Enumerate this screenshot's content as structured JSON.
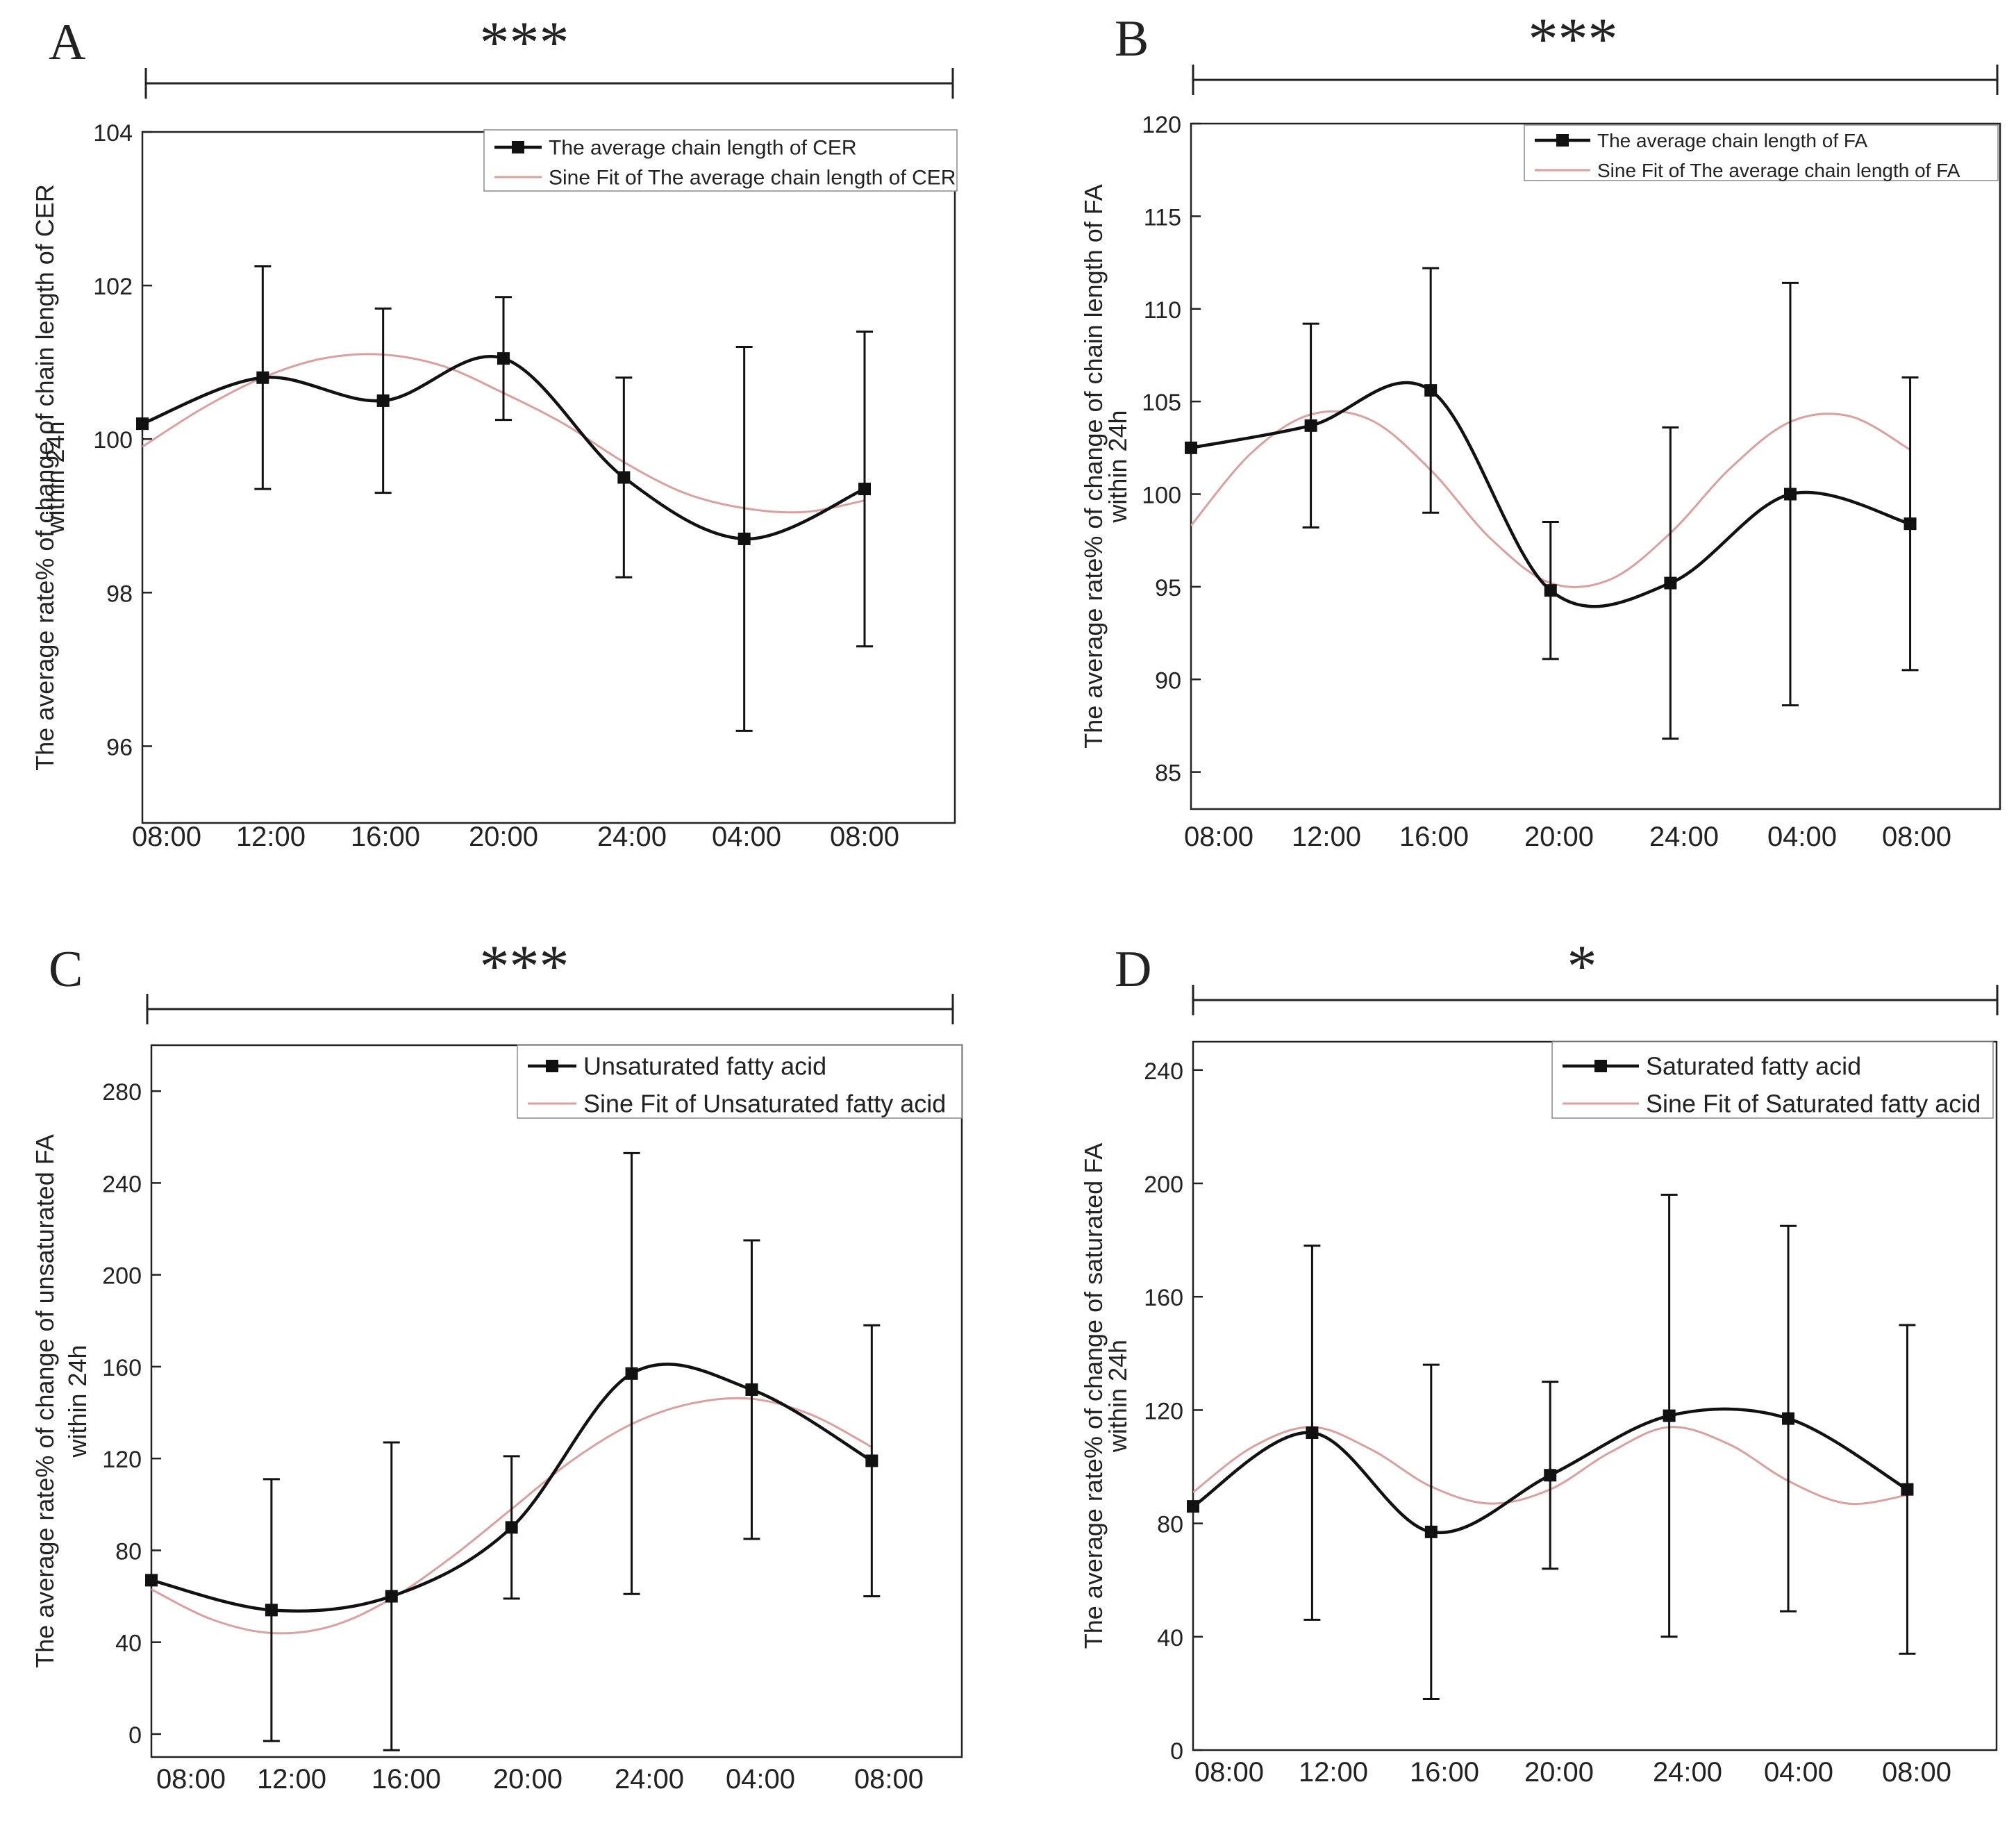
{
  "figure": {
    "panels": [
      {
        "letter": "A",
        "significance": "***",
        "ylabel_line1": "The average rate% of change of chain length of CER",
        "ylabel_line2": "within 24h",
        "legend_data": "The average chain length of CER",
        "legend_fit": "Sine Fit of The average chain length of CER",
        "xticks": [
          "08:00",
          "12:00",
          "16:00",
          "20:00",
          "24:00",
          "04:00",
          "08:00"
        ],
        "yticks": [
          96,
          98,
          100,
          102,
          104
        ]
      },
      {
        "letter": "B",
        "significance": "***",
        "ylabel_line1": "The average rate% of change of chain length of FA",
        "ylabel_line2": "within 24h",
        "legend_data": "The average chain length of FA",
        "legend_fit": "Sine Fit of The average chain length of FA",
        "xticks": [
          "08:00",
          "12:00",
          "16:00",
          "20:00",
          "24:00",
          "04:00",
          "08:00"
        ],
        "yticks": [
          85,
          90,
          95,
          100,
          105,
          110,
          115,
          120
        ]
      },
      {
        "letter": "C",
        "significance": "***",
        "ylabel_line1": "The average rate% of change of unsaturated FA",
        "ylabel_line2": "within 24h",
        "legend_data": "Unsaturated fatty acid",
        "legend_fit": "Sine Fit of Unsaturated fatty acid",
        "xticks": [
          "08:00",
          "12:00",
          "16:00",
          "20:00",
          "24:00",
          "04:00",
          "08:00"
        ],
        "yticks": [
          0,
          40,
          80,
          120,
          160,
          200,
          240,
          280
        ]
      },
      {
        "letter": "D",
        "significance": "*",
        "ylabel_line1": "The average rate% of change of saturated FA",
        "ylabel_line2": "within 24h",
        "legend_data": "Saturated fatty acid",
        "legend_fit": "Sine Fit of Saturated fatty acid",
        "xticks": [
          "08:00",
          "12:00",
          "16:00",
          "20:00",
          "24:00",
          "04:00",
          "08:00"
        ],
        "yticks": [
          0,
          40,
          80,
          120,
          160,
          200,
          240
        ]
      }
    ]
  },
  "colors": {
    "data": "#111111",
    "fit": "#d9a0a0",
    "axis": "#222222"
  },
  "chart_data": [
    {
      "type": "line",
      "panel": "A",
      "categories": [
        "08:00",
        "12:00",
        "16:00",
        "20:00",
        "24:00",
        "04:00",
        "08:00"
      ],
      "x": [
        0,
        4,
        8,
        12,
        16,
        20,
        24
      ],
      "series": [
        {
          "name": "The average chain length of CER",
          "x": [
            0,
            4,
            8,
            12,
            16,
            20,
            24
          ],
          "values": [
            100.2,
            100.8,
            100.5,
            101.05,
            99.5,
            98.7,
            99.35
          ],
          "error": [
            null,
            1.45,
            1.2,
            0.8,
            1.3,
            2.5,
            2.05
          ]
        },
        {
          "name": "Sine Fit of The average chain length of CER",
          "x": [
            0,
            2,
            4,
            6,
            8,
            10,
            12,
            14,
            16,
            18,
            20,
            22,
            24
          ],
          "values": [
            99.9,
            100.4,
            100.8,
            101.05,
            101.1,
            100.95,
            100.6,
            100.2,
            99.7,
            99.3,
            99.1,
            99.05,
            99.2
          ]
        }
      ],
      "xlim": [
        0,
        27
      ],
      "ylim": [
        95,
        104
      ],
      "legend": "top-right"
    },
    {
      "type": "line",
      "panel": "B",
      "categories": [
        "08:00",
        "12:00",
        "16:00",
        "20:00",
        "24:00",
        "04:00",
        "08:00"
      ],
      "x": [
        0,
        4,
        8,
        12,
        16,
        20,
        24
      ],
      "series": [
        {
          "name": "The average chain length of FA",
          "x": [
            0,
            4,
            8,
            12,
            16,
            20,
            24
          ],
          "values": [
            102.5,
            103.7,
            105.6,
            94.8,
            95.2,
            100.0,
            98.4
          ],
          "error": [
            null,
            5.5,
            6.6,
            3.7,
            8.4,
            11.4,
            7.9
          ]
        },
        {
          "name": "Sine Fit of The average chain length of FA",
          "x": [
            0,
            2,
            4,
            6,
            8,
            10,
            12,
            14,
            16,
            18,
            20,
            22,
            24
          ],
          "values": [
            98.3,
            102.2,
            104.3,
            104.0,
            101.3,
            97.6,
            95.2,
            95.4,
            97.9,
            101.4,
            103.9,
            104.2,
            102.4
          ]
        }
      ],
      "xlim": [
        0,
        27
      ],
      "ylim": [
        83,
        120
      ],
      "legend": "top-right"
    },
    {
      "type": "line",
      "panel": "C",
      "categories": [
        "08:00",
        "12:00",
        "16:00",
        "20:00",
        "24:00",
        "04:00",
        "08:00"
      ],
      "x": [
        0,
        4,
        8,
        12,
        16,
        20,
        24
      ],
      "series": [
        {
          "name": "Unsaturated fatty acid",
          "x": [
            0,
            4,
            8,
            12,
            16,
            20,
            24
          ],
          "values": [
            67,
            54,
            60,
            90,
            157,
            150,
            119
          ],
          "error": [
            null,
            57,
            67,
            31,
            96,
            65,
            59
          ]
        },
        {
          "name": "Sine Fit of Unsaturated fatty acid",
          "x": [
            0,
            2,
            4,
            6,
            8,
            10,
            12,
            14,
            16,
            18,
            20,
            22,
            24
          ],
          "values": [
            63,
            50,
            44,
            47,
            59,
            77,
            98,
            119,
            135,
            144,
            146,
            139,
            125
          ]
        }
      ],
      "xlim": [
        0,
        27
      ],
      "ylim": [
        -10,
        300
      ],
      "legend": "top-right"
    },
    {
      "type": "line",
      "panel": "D",
      "categories": [
        "08:00",
        "12:00",
        "16:00",
        "20:00",
        "24:00",
        "04:00",
        "08:00"
      ],
      "x": [
        0,
        4,
        8,
        12,
        16,
        20,
        24
      ],
      "series": [
        {
          "name": "Saturated fatty acid",
          "x": [
            0,
            4,
            8,
            12,
            16,
            20,
            24
          ],
          "values": [
            86,
            112,
            77,
            97,
            118,
            117,
            92
          ],
          "error": [
            null,
            66,
            59,
            33,
            78,
            68,
            58
          ]
        },
        {
          "name": "Sine Fit of Saturated fatty acid",
          "x": [
            0,
            2,
            4,
            6,
            8,
            10,
            12,
            14,
            16,
            18,
            20,
            22,
            24
          ],
          "values": [
            91,
            107,
            114,
            106,
            93,
            87,
            92,
            105,
            114,
            108,
            95,
            87,
            90
          ]
        }
      ],
      "xlim": [
        0,
        27
      ],
      "ylim": [
        0,
        250
      ],
      "legend": "top-right"
    }
  ]
}
